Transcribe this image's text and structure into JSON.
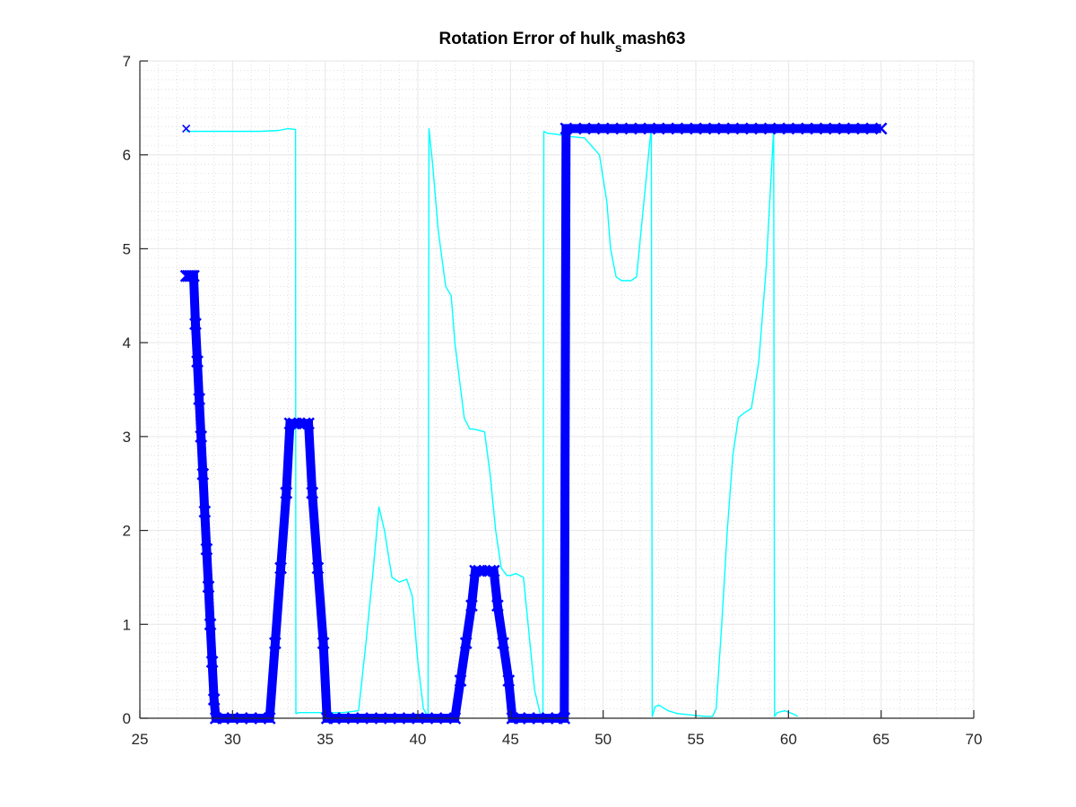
{
  "chart_data": {
    "type": "line",
    "title": "Rotation Error of hulk",
    "title_subscript": "s",
    "title_suffix": "mash63",
    "xlabel": "",
    "ylabel": "",
    "xlim": [
      25,
      70
    ],
    "ylim": [
      0,
      7
    ],
    "xticks": [
      25,
      30,
      35,
      40,
      45,
      50,
      55,
      60,
      65,
      70
    ],
    "yticks": [
      0,
      1,
      2,
      3,
      4,
      5,
      6,
      7
    ],
    "grid": true,
    "minor_grid": true,
    "colors": {
      "thick_series": "#0000ff",
      "thin_series": "#00ffff",
      "grid": "#e6e6e6",
      "axes": "#262626"
    },
    "series": [
      {
        "style": "thick-x-markers",
        "x": [
          27.5,
          27.6,
          27.7,
          27.8,
          27.9,
          28.0,
          28.1,
          28.2,
          28.3,
          28.4,
          28.5,
          28.6,
          28.7,
          28.8,
          28.9,
          29.0,
          29.1,
          29.5,
          30.0,
          30.5,
          31.0,
          31.5,
          32.0,
          32.3,
          32.6,
          32.9,
          33.1,
          33.3,
          33.6,
          33.9,
          34.1,
          34.3,
          34.6,
          34.9,
          35.1,
          35.5,
          36.0,
          37.0,
          38.0,
          39.0,
          40.0,
          41.0,
          42.0,
          42.3,
          42.6,
          42.9,
          43.1,
          43.3,
          43.6,
          43.9,
          44.1,
          44.3,
          44.6,
          44.9,
          45.1,
          45.5,
          46.0,
          46.5,
          47.0,
          47.5,
          47.9,
          48.0,
          49.0,
          50.0,
          51.0,
          52.0,
          53.0,
          54.0,
          55.0,
          56.0,
          57.0,
          58.0,
          59.0,
          60.0,
          61.0,
          62.0,
          63.0,
          64.0,
          65.0
        ],
        "y": [
          4.71,
          4.71,
          4.71,
          4.71,
          4.71,
          4.2,
          3.8,
          3.4,
          3.0,
          2.6,
          2.2,
          1.8,
          1.4,
          1.0,
          0.6,
          0.2,
          0.0,
          0.0,
          0.0,
          0.0,
          0.0,
          0.0,
          0.0,
          0.8,
          1.6,
          2.4,
          3.14,
          3.14,
          3.14,
          3.14,
          3.14,
          2.4,
          1.6,
          0.8,
          0.0,
          0.0,
          0.0,
          0.0,
          0.0,
          0.0,
          0.0,
          0.0,
          0.0,
          0.4,
          0.8,
          1.2,
          1.57,
          1.57,
          1.57,
          1.57,
          1.57,
          1.2,
          0.8,
          0.4,
          0.0,
          0.0,
          0.0,
          0.0,
          0.0,
          0.0,
          0.0,
          6.28,
          6.28,
          6.28,
          6.28,
          6.28,
          6.28,
          6.28,
          6.28,
          6.28,
          6.28,
          6.28,
          6.28,
          6.28,
          6.28,
          6.28,
          6.28,
          6.28,
          6.28
        ]
      },
      {
        "style": "thin-line",
        "x": [
          27.5,
          30.0,
          31.5,
          32.5,
          33.0,
          33.4,
          33.42,
          33.6,
          34.0,
          35.0,
          36.0,
          36.8,
          37.2,
          37.6,
          37.9,
          38.2,
          38.6,
          39.0,
          39.4,
          39.7,
          40.0,
          40.3,
          40.55,
          40.6,
          40.8,
          41.1,
          41.5,
          41.8,
          42.0,
          42.5,
          42.8,
          43.0,
          43.4,
          43.6,
          43.9,
          44.2,
          44.5,
          44.8,
          45.0,
          45.3,
          45.7,
          46.0,
          46.3,
          46.6,
          46.75,
          46.8,
          47.0,
          47.5,
          48.0,
          49.0,
          49.8,
          50.2,
          50.4,
          50.7,
          51.0,
          51.5,
          51.8,
          52.2,
          52.5,
          52.6,
          52.65,
          52.8,
          53.0,
          53.5,
          54.0,
          55.0,
          55.5,
          55.9,
          56.1,
          56.4,
          56.7,
          57.0,
          57.3,
          57.6,
          58.0,
          58.4,
          58.8,
          59.1,
          59.2,
          59.25,
          59.4,
          59.8,
          60.2,
          60.5
        ],
        "y": [
          6.25,
          6.25,
          6.25,
          6.26,
          6.28,
          6.27,
          0.05,
          0.06,
          0.06,
          0.06,
          0.06,
          0.08,
          0.8,
          1.6,
          2.25,
          2.0,
          1.5,
          1.45,
          1.48,
          1.3,
          0.6,
          0.1,
          0.02,
          6.28,
          5.9,
          5.2,
          4.6,
          4.5,
          4.0,
          3.2,
          3.08,
          3.08,
          3.06,
          3.05,
          2.6,
          2.0,
          1.6,
          1.52,
          1.52,
          1.54,
          1.5,
          0.9,
          0.3,
          0.05,
          0.02,
          6.25,
          6.23,
          6.22,
          6.2,
          6.18,
          6.0,
          5.5,
          5.0,
          4.7,
          4.66,
          4.66,
          4.7,
          5.5,
          6.1,
          6.27,
          0.02,
          0.12,
          0.14,
          0.08,
          0.05,
          0.03,
          0.02,
          0.02,
          0.1,
          1.0,
          2.0,
          2.8,
          3.2,
          3.25,
          3.3,
          3.8,
          4.8,
          5.9,
          6.27,
          0.02,
          0.06,
          0.08,
          0.05,
          0.02
        ]
      }
    ],
    "annotations": [
      {
        "marker": "x",
        "x": 27.5,
        "y": 6.28
      }
    ]
  }
}
